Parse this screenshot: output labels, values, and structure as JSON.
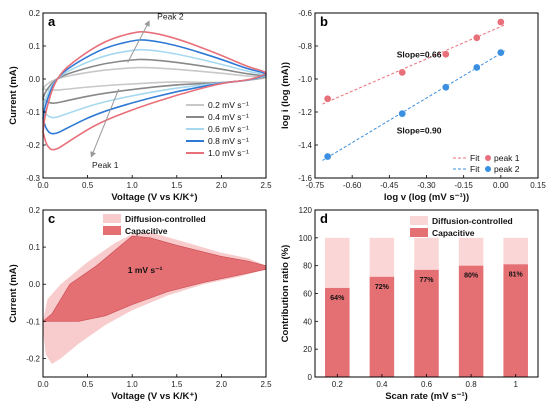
{
  "chart_data": [
    {
      "panel": "a",
      "type": "line",
      "xlabel": "Voltage (V vs K/K⁺)",
      "ylabel": "Current (mA)",
      "xlim": [
        0.0,
        2.5
      ],
      "ylim": [
        -0.3,
        0.2
      ],
      "xticks": [
        "0.0",
        "0.5",
        "1.0",
        "1.5",
        "2.0",
        "2.5"
      ],
      "yticks": [
        "-0.3",
        "-0.2",
        "-0.1",
        "0.0",
        "0.1",
        "0.2"
      ],
      "legend_position": "bottom-right",
      "annotations": [
        "Peak 2",
        "Peak 1"
      ],
      "series": [
        {
          "name": "0.2 mV s⁻¹",
          "color": "#c8c8c8",
          "peak_anodic": 0.035,
          "peak_cathodic": -0.035,
          "start": -0.03
        },
        {
          "name": "0.4 mV s⁻¹",
          "color": "#888888",
          "peak_anodic": 0.06,
          "peak_cathodic": -0.075,
          "start": -0.06
        },
        {
          "name": "0.6 mV s⁻¹",
          "color": "#a6d8f0",
          "peak_anodic": 0.09,
          "peak_cathodic": -0.12,
          "start": -0.09
        },
        {
          "name": "0.8 mV s⁻¹",
          "color": "#2e79d6",
          "peak_anodic": 0.12,
          "peak_cathodic": -0.17,
          "start": -0.12
        },
        {
          "name": "1.0 mV s⁻¹",
          "color": "#e8707a",
          "peak_anodic": 0.145,
          "peak_cathodic": -0.22,
          "start": -0.16
        }
      ]
    },
    {
      "panel": "b",
      "type": "scatter",
      "xlabel": "log v (log (mV s⁻¹))",
      "ylabel": "log i (log (mA))",
      "xlim": [
        -0.75,
        0.15
      ],
      "ylim": [
        -1.6,
        -0.6
      ],
      "xticks": [
        "-0.75",
        "-0.60",
        "-0.45",
        "-0.30",
        "-0.15",
        "0.00",
        "0.15"
      ],
      "yticks": [
        "-1.6",
        "-1.4",
        "-1.2",
        "-1.0",
        "-0.8",
        "-0.6"
      ],
      "legend_position": "bottom-right",
      "annotations": [
        "Slope=0.66",
        "Slope=0.90"
      ],
      "fit_label": "Fit",
      "series": [
        {
          "name": "peak 1",
          "color": "#e8707a",
          "x": [
            -0.699,
            -0.398,
            -0.222,
            -0.097,
            0.0
          ],
          "y": [
            -1.12,
            -0.96,
            -0.85,
            -0.75,
            -0.655
          ]
        },
        {
          "name": "peak 2",
          "color": "#3b8fe0",
          "x": [
            -0.699,
            -0.398,
            -0.222,
            -0.097,
            0.0
          ],
          "y": [
            -1.47,
            -1.21,
            -1.05,
            -0.93,
            -0.84
          ]
        }
      ]
    },
    {
      "panel": "c",
      "type": "area",
      "xlabel": "Voltage (V vs K/K⁺)",
      "ylabel": "Current (mA)",
      "xlim": [
        0.0,
        2.5
      ],
      "ylim": [
        -0.25,
        0.2
      ],
      "xticks": [
        "0.0",
        "0.5",
        "1.0",
        "1.5",
        "2.0",
        "2.5"
      ],
      "yticks": [
        "-0.2",
        "-0.1",
        "0.0",
        "0.1",
        "0.2"
      ],
      "annotation": "1 mV s⁻¹",
      "legend_position": "top-center",
      "series": [
        {
          "name": "Diffusion-controlled",
          "color": "#f8cccc"
        },
        {
          "name": "Capacitive",
          "color": "#e47074"
        }
      ]
    },
    {
      "panel": "d",
      "type": "bar",
      "xlabel": "Scan rate (mV s⁻¹)",
      "ylabel": "Contribution ratio (%)",
      "ylim": [
        0,
        120
      ],
      "yticks": [
        "0",
        "20",
        "40",
        "60",
        "80",
        "100",
        "120"
      ],
      "categories": [
        "0.2",
        "0.4",
        "0.6",
        "0.8",
        "1"
      ],
      "legend_position": "top-right",
      "series": [
        {
          "name": "Diffusion-controlled",
          "color": "#fbd6d6",
          "values": [
            36,
            28,
            23,
            20,
            19
          ]
        },
        {
          "name": "Capacitive",
          "color": "#e47074",
          "values": [
            64,
            72,
            77,
            80,
            81
          ]
        }
      ],
      "labels": [
        "64%",
        "72%",
        "77%",
        "80%",
        "81%"
      ]
    }
  ],
  "panel_labels": [
    "a",
    "b",
    "c",
    "d"
  ]
}
